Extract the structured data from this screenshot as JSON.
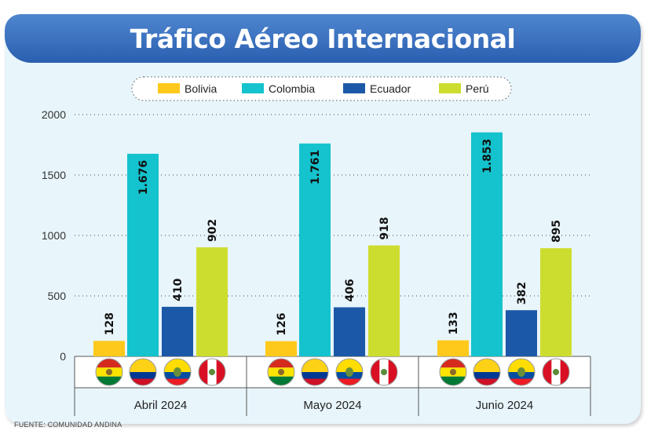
{
  "title": "Tráfico Aéreo Internacional",
  "source": "FUENTE: COMUNIDAD ANDINA",
  "colors": {
    "Bolivia": "#ffc91c",
    "Colombia": "#14c3cd",
    "Ecuador": "#1b59a8",
    "Perú": "#cddd2f"
  },
  "flag_icons": [
    "bolivia-flag-icon",
    "colombia-flag-icon",
    "ecuador-flag-icon",
    "peru-flag-icon"
  ],
  "chart_data": {
    "type": "bar",
    "title": "Tráfico Aéreo Internacional",
    "categories": [
      "Abril 2024",
      "Mayo 2024",
      "Junio 2024"
    ],
    "series": [
      {
        "name": "Bolivia",
        "values": [
          128,
          126,
          133
        ],
        "labels": [
          "128",
          "126",
          "133"
        ]
      },
      {
        "name": "Colombia",
        "values": [
          1676,
          1761,
          1853
        ],
        "labels": [
          "1.676",
          "1.761",
          "1.853"
        ]
      },
      {
        "name": "Ecuador",
        "values": [
          410,
          406,
          382
        ],
        "labels": [
          "410",
          "406",
          "382"
        ]
      },
      {
        "name": "Perú",
        "values": [
          902,
          918,
          895
        ],
        "labels": [
          "902",
          "918",
          "895"
        ]
      }
    ],
    "yticks": [
      "0",
      "500",
      "1000",
      "1500",
      "2000"
    ],
    "ylim": [
      0,
      2000
    ],
    "grid": true,
    "legend": "top-center"
  }
}
